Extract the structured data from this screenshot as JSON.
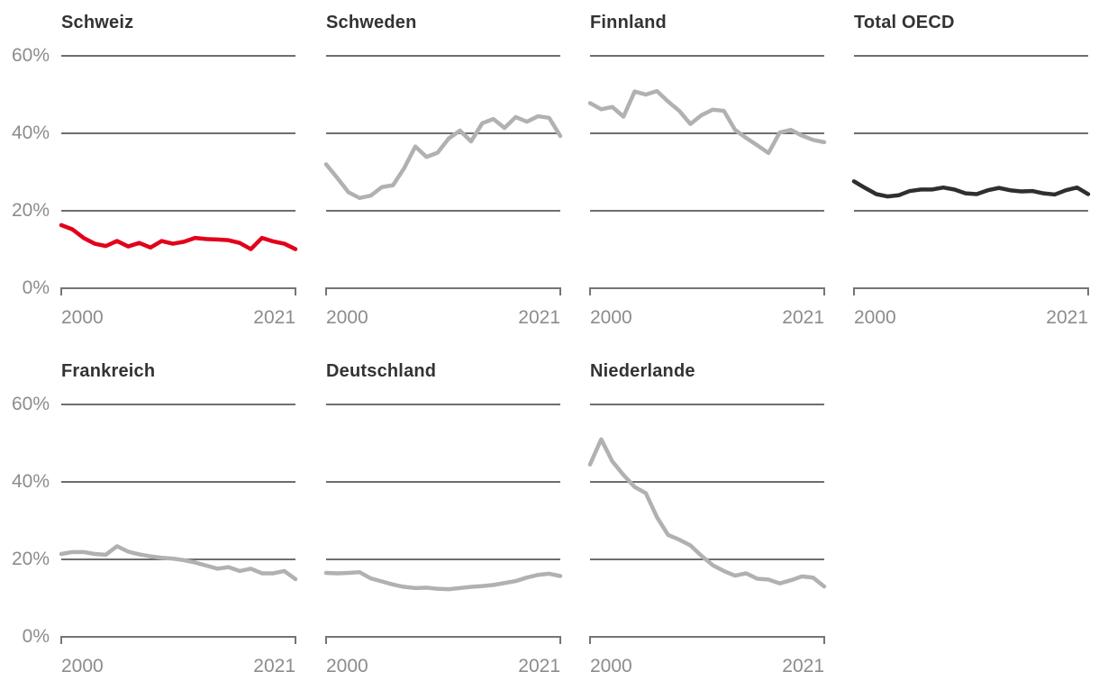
{
  "colors": {
    "background": "#ffffff",
    "grid": "#6e6e6e",
    "axis": "#757575",
    "tick_label": "#8c8c8c",
    "title": "#333333",
    "highlight_red": "#e2001a",
    "neutral_gray": "#b1b1b1",
    "dark_gray": "#2f2f2f"
  },
  "chart_data": {
    "type": "line",
    "layout": "small-multiples grid, 4 columns x 2 rows, shared axes, grid on, no legend",
    "x": [
      2000,
      2001,
      2002,
      2003,
      2004,
      2005,
      2006,
      2007,
      2008,
      2009,
      2010,
      2011,
      2012,
      2013,
      2014,
      2015,
      2016,
      2017,
      2018,
      2019,
      2020,
      2021
    ],
    "x_tick_labels": [
      "2000",
      "2021"
    ],
    "ylim": [
      0,
      60
    ],
    "y_unit": "%",
    "y_tick_labels": [
      "60%",
      "40%",
      "20%",
      "0%"
    ],
    "grid_values": [
      60,
      40,
      20
    ],
    "series": [
      {
        "name": "Schweiz",
        "color": "#e2001a",
        "values": [
          16.3,
          15.2,
          13.0,
          11.5,
          10.9,
          12.2,
          10.8,
          11.7,
          10.5,
          12.2,
          11.5,
          12.0,
          13.0,
          12.7,
          12.6,
          12.4,
          11.7,
          10.1,
          13.0,
          12.1,
          11.5,
          10.1
        ]
      },
      {
        "name": "Schweden",
        "color": "#b1b1b1",
        "values": [
          32.0,
          28.5,
          24.8,
          23.3,
          23.9,
          26.1,
          26.6,
          31.0,
          36.6,
          33.9,
          35.0,
          38.7,
          40.7,
          37.9,
          42.6,
          43.7,
          41.4,
          44.2,
          43.0,
          44.4,
          44.0,
          39.3
        ]
      },
      {
        "name": "Finnland",
        "color": "#b1b1b1",
        "values": [
          47.8,
          46.2,
          46.8,
          44.3,
          50.8,
          50.0,
          50.9,
          48.2,
          45.8,
          42.4,
          44.7,
          46.1,
          45.8,
          40.9,
          38.8,
          36.9,
          34.9,
          40.2,
          40.9,
          39.4,
          38.3,
          37.7
        ]
      },
      {
        "name": "Total OECD",
        "color": "#2f2f2f",
        "values": [
          27.6,
          25.9,
          24.3,
          23.7,
          24.0,
          25.1,
          25.5,
          25.5,
          26.0,
          25.5,
          24.5,
          24.3,
          25.3,
          25.9,
          25.3,
          25.0,
          25.1,
          24.5,
          24.2,
          25.3,
          26.0,
          24.3
        ]
      },
      {
        "name": "Frankreich",
        "color": "#b1b1b1",
        "values": [
          21.4,
          21.9,
          21.9,
          21.4,
          21.2,
          23.4,
          22.0,
          21.3,
          20.8,
          20.4,
          20.2,
          19.8,
          19.2,
          18.4,
          17.6,
          18.0,
          17.0,
          17.6,
          16.4,
          16.4,
          17.0,
          14.9
        ]
      },
      {
        "name": "Deutschland",
        "color": "#b1b1b1",
        "values": [
          16.5,
          16.4,
          16.5,
          16.7,
          15.1,
          14.3,
          13.5,
          12.9,
          12.6,
          12.7,
          12.4,
          12.3,
          12.6,
          12.9,
          13.1,
          13.4,
          13.9,
          14.4,
          15.3,
          16.0,
          16.3,
          15.7
        ]
      },
      {
        "name": "Niederlande",
        "color": "#b1b1b1",
        "values": [
          44.5,
          51.0,
          45.3,
          41.8,
          38.7,
          37.1,
          30.9,
          26.3,
          25.1,
          23.6,
          20.9,
          18.5,
          17.0,
          15.8,
          16.4,
          15.0,
          14.8,
          13.8,
          14.6,
          15.6,
          15.3,
          13.0
        ]
      }
    ]
  }
}
